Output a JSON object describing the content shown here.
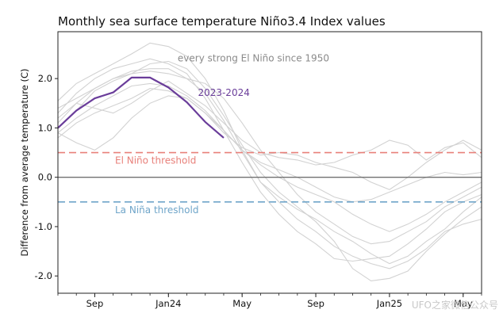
{
  "chart_data": {
    "type": "line",
    "title": "Monthly sea surface temperature Niño3.4 Index values",
    "ylabel": "Difference from average temperature (C)",
    "xlabel": "",
    "ylim": [
      -2.35,
      2.95
    ],
    "x_ticks": [
      {
        "pos": 2,
        "label": "Sep"
      },
      {
        "pos": 6,
        "label": "Jan24"
      },
      {
        "pos": 10,
        "label": "May"
      },
      {
        "pos": 14,
        "label": "Sep"
      },
      {
        "pos": 18,
        "label": "Jan25"
      },
      {
        "pos": 22,
        "label": "May"
      }
    ],
    "y_ticks": [
      {
        "value": 2.0,
        "label": "2.0"
      },
      {
        "value": 1.0,
        "label": "1.0"
      },
      {
        "value": 0.0,
        "label": "0.0"
      },
      {
        "value": -1.0,
        "label": "-1.0"
      },
      {
        "value": -2.0,
        "label": "-2.0"
      }
    ],
    "x_range": [
      0,
      23
    ],
    "thresholds": [
      {
        "value": 0.5,
        "label": "El Niño threshold",
        "color": "#e8807a"
      },
      {
        "value": -0.5,
        "label": "La Niña threshold",
        "color": "#6fa5c9"
      }
    ],
    "zero_line_color": "#707070",
    "highlight": {
      "name": "2023-2024",
      "color": "#6a3d9a",
      "x": [
        0,
        1,
        2,
        3,
        4,
        5,
        6,
        7,
        8,
        9
      ],
      "values": [
        1.0,
        1.35,
        1.6,
        1.72,
        2.02,
        2.02,
        1.82,
        1.52,
        1.12,
        0.8
      ]
    },
    "background_label": "every strong El Niño since 1950",
    "background_color": "#d2d2d2",
    "background_series": [
      {
        "x": [
          0,
          1,
          2,
          3,
          4,
          5,
          6,
          7,
          8,
          9,
          10,
          11,
          12,
          13,
          14,
          15,
          16,
          17,
          18,
          19,
          20,
          21,
          22,
          23
        ],
        "values": [
          1.55,
          1.9,
          2.1,
          2.3,
          2.5,
          2.72,
          2.65,
          2.45,
          2.0,
          1.35,
          0.55,
          -0.1,
          -0.5,
          -0.85,
          -1.1,
          -1.4,
          -1.6,
          -1.75,
          -1.85,
          -1.7,
          -1.45,
          -1.1,
          -0.95,
          -0.85
        ]
      },
      {
        "x": [
          0,
          1,
          2,
          3,
          4,
          5,
          6,
          7,
          8,
          9,
          10,
          11,
          12,
          13,
          14,
          15,
          16,
          17,
          18,
          19,
          20,
          21,
          22,
          23
        ],
        "values": [
          1.3,
          1.7,
          2.0,
          2.2,
          2.3,
          2.4,
          2.3,
          2.1,
          1.6,
          0.95,
          0.3,
          -0.3,
          -0.75,
          -1.1,
          -1.35,
          -1.65,
          -1.7,
          -1.65,
          -1.6,
          -1.35,
          -1.05,
          -0.7,
          -0.5,
          -0.35
        ]
      },
      {
        "x": [
          0,
          1,
          2,
          3,
          4,
          5,
          6,
          7,
          8,
          9,
          10,
          11,
          12,
          13,
          14,
          15,
          16,
          17,
          18,
          19,
          20,
          21,
          22,
          23
        ],
        "values": [
          1.1,
          1.5,
          1.8,
          2.0,
          2.15,
          2.2,
          2.2,
          2.0,
          1.7,
          1.15,
          0.5,
          -0.1,
          -0.4,
          -0.65,
          -0.85,
          -1.1,
          -1.3,
          -1.55,
          -1.75,
          -1.6,
          -1.3,
          -1.05,
          -0.7,
          -0.4
        ]
      },
      {
        "x": [
          0,
          1,
          2,
          3,
          4,
          5,
          6,
          7,
          8,
          9,
          10,
          11,
          12,
          13,
          14,
          15,
          16,
          17,
          18,
          19,
          20,
          21,
          22,
          23
        ],
        "values": [
          1.0,
          1.35,
          1.75,
          1.95,
          2.1,
          2.3,
          2.35,
          2.2,
          1.8,
          1.25,
          0.65,
          0.1,
          -0.3,
          -0.6,
          -0.9,
          -1.3,
          -1.85,
          -2.1,
          -2.05,
          -1.9,
          -1.5,
          -1.15,
          -0.85,
          -0.6
        ]
      },
      {
        "x": [
          0,
          1,
          2,
          3,
          4,
          5,
          6,
          7,
          8,
          9,
          10,
          11,
          12,
          13,
          14,
          15,
          16,
          17,
          18,
          19,
          20,
          21,
          22,
          23
        ],
        "values": [
          0.8,
          1.1,
          1.3,
          1.45,
          1.6,
          1.8,
          1.75,
          1.6,
          1.3,
          0.95,
          0.55,
          0.25,
          0.0,
          -0.2,
          -0.35,
          -0.5,
          -0.75,
          -0.95,
          -1.1,
          -0.95,
          -0.75,
          -0.5,
          -0.3,
          -0.1
        ]
      },
      {
        "x": [
          0,
          1,
          2,
          3,
          4,
          5,
          6,
          7,
          8,
          9,
          10,
          11,
          12,
          13,
          14,
          15,
          16,
          17,
          18,
          19,
          20,
          21,
          22,
          23
        ],
        "values": [
          0.9,
          1.2,
          1.45,
          1.65,
          1.85,
          1.9,
          1.85,
          1.65,
          1.35,
          0.95,
          0.55,
          0.3,
          0.15,
          0.0,
          -0.2,
          -0.4,
          -0.5,
          -0.45,
          -0.3,
          -0.15,
          0.0,
          0.1,
          0.05,
          0.1
        ]
      },
      {
        "x": [
          0,
          1,
          2,
          3,
          4,
          5,
          6,
          7,
          8,
          9,
          10,
          11,
          12,
          13,
          14,
          15,
          16,
          17,
          18,
          19,
          20,
          21,
          22,
          23
        ],
        "values": [
          1.2,
          1.5,
          1.4,
          1.3,
          1.5,
          1.75,
          1.95,
          1.7,
          1.45,
          1.1,
          0.75,
          0.5,
          0.4,
          0.35,
          0.25,
          0.3,
          0.45,
          0.55,
          0.75,
          0.65,
          0.35,
          0.6,
          0.7,
          0.4
        ]
      },
      {
        "x": [
          0,
          1,
          2,
          3,
          4,
          5,
          6,
          7,
          8,
          9,
          10,
          11,
          12,
          13,
          14,
          15,
          16,
          17,
          18,
          19,
          20,
          21,
          22,
          23
        ],
        "values": [
          0.9,
          0.7,
          0.55,
          0.8,
          1.2,
          1.5,
          1.65,
          1.6,
          1.3,
          0.9,
          0.6,
          0.45,
          0.5,
          0.45,
          0.3,
          0.2,
          0.1,
          -0.1,
          -0.25,
          0.0,
          0.3,
          0.55,
          0.75,
          0.55
        ]
      },
      {
        "x": [
          0,
          1,
          2,
          3,
          4,
          5,
          6,
          7,
          8,
          9,
          10,
          11,
          12,
          13,
          14,
          15,
          16,
          17,
          18,
          19,
          20,
          21,
          22,
          23
        ],
        "values": [
          1.4,
          1.6,
          1.8,
          2.0,
          2.1,
          2.15,
          2.1,
          2.0,
          1.9,
          1.6,
          1.1,
          0.55,
          0.1,
          -0.35,
          -0.7,
          -0.95,
          -1.2,
          -1.35,
          -1.3,
          -1.1,
          -0.9,
          -0.6,
          -0.4,
          -0.2
        ]
      }
    ]
  },
  "watermark": "UFO之家微信公众号"
}
